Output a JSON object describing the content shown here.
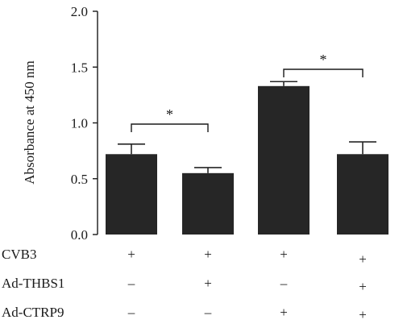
{
  "chart_data": {
    "type": "bar",
    "title": "",
    "ylabel": "Absorbance at 450 nm",
    "ylim": [
      0,
      2.0
    ],
    "yticks": [
      "0.0",
      "0.5",
      "1.0",
      "1.5",
      "2.0"
    ],
    "grid": false,
    "bar_color": "#262626",
    "groups": [
      {
        "value": 0.72,
        "error": 0.09
      },
      {
        "value": 0.55,
        "error": 0.05
      },
      {
        "value": 1.33,
        "error": 0.04
      },
      {
        "value": 0.72,
        "error": 0.11
      }
    ],
    "conditions": [
      {
        "label": "CVB3",
        "signs": [
          "+",
          "+",
          "+",
          "+"
        ]
      },
      {
        "label": "Ad-THBS1",
        "signs": [
          "–",
          "+",
          "–",
          "+"
        ]
      },
      {
        "label": "Ad-CTRP9",
        "signs": [
          "–",
          "–",
          "+",
          "+"
        ]
      }
    ],
    "significance": [
      {
        "from": 0,
        "to": 1,
        "label": "*"
      },
      {
        "from": 2,
        "to": 3,
        "label": "*"
      }
    ]
  }
}
